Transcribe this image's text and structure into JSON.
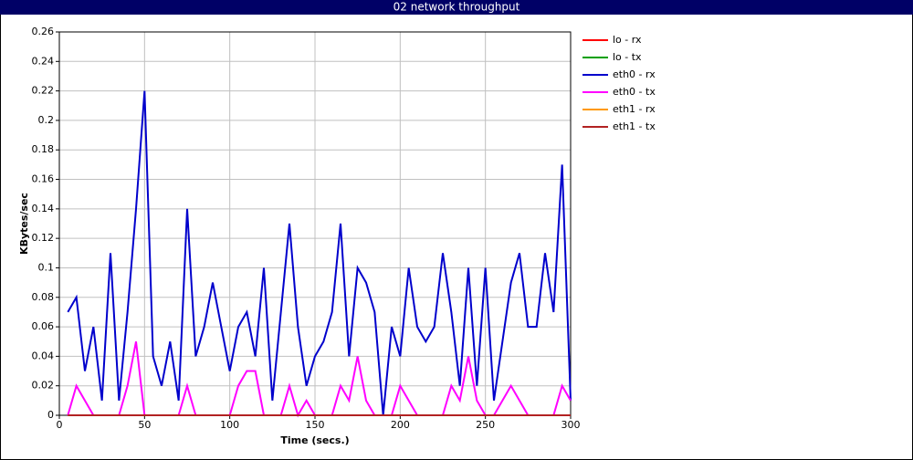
{
  "chart_data": {
    "type": "line",
    "title": "02 network throughput",
    "x_label": "Time (secs.)",
    "y_label": "KBytes/sec",
    "x": [
      5,
      10,
      15,
      20,
      25,
      30,
      35,
      40,
      45,
      50,
      55,
      60,
      65,
      70,
      75,
      80,
      85,
      90,
      95,
      100,
      105,
      110,
      115,
      120,
      125,
      130,
      135,
      140,
      145,
      150,
      155,
      160,
      165,
      170,
      175,
      180,
      185,
      190,
      195,
      200,
      205,
      210,
      215,
      220,
      225,
      230,
      235,
      240,
      245,
      250,
      255,
      260,
      265,
      270,
      275,
      280,
      285,
      290,
      295,
      300
    ],
    "series": [
      {
        "name": "lo - rx",
        "color": "#ff0000",
        "values": [
          0,
          0,
          0,
          0,
          0,
          0,
          0,
          0,
          0,
          0,
          0,
          0,
          0,
          0,
          0,
          0,
          0,
          0,
          0,
          0,
          0,
          0,
          0,
          0,
          0,
          0,
          0,
          0,
          0,
          0,
          0,
          0,
          0,
          0,
          0,
          0,
          0,
          0,
          0,
          0,
          0,
          0,
          0,
          0,
          0,
          0,
          0,
          0,
          0,
          0,
          0,
          0,
          0,
          0,
          0,
          0,
          0,
          0,
          0,
          0
        ]
      },
      {
        "name": "lo - tx",
        "color": "#00a000",
        "values": [
          0,
          0,
          0,
          0,
          0,
          0,
          0,
          0,
          0,
          0,
          0,
          0,
          0,
          0,
          0,
          0,
          0,
          0,
          0,
          0,
          0,
          0,
          0,
          0,
          0,
          0,
          0,
          0,
          0,
          0,
          0,
          0,
          0,
          0,
          0,
          0,
          0,
          0,
          0,
          0,
          0,
          0,
          0,
          0,
          0,
          0,
          0,
          0,
          0,
          0,
          0,
          0,
          0,
          0,
          0,
          0,
          0,
          0,
          0,
          0
        ]
      },
      {
        "name": "eth0 - rx",
        "color": "#0000cc",
        "values": [
          0.07,
          0.08,
          0.03,
          0.06,
          0.01,
          0.11,
          0.01,
          0.07,
          0.14,
          0.22,
          0.04,
          0.02,
          0.05,
          0.01,
          0.14,
          0.04,
          0.06,
          0.09,
          0.06,
          0.03,
          0.06,
          0.07,
          0.04,
          0.1,
          0.01,
          0.07,
          0.13,
          0.06,
          0.02,
          0.04,
          0.05,
          0.07,
          0.13,
          0.04,
          0.1,
          0.09,
          0.07,
          0,
          0.06,
          0.04,
          0.1,
          0.06,
          0.05,
          0.06,
          0.11,
          0.07,
          0.02,
          0.1,
          0.02,
          0.1,
          0.01,
          0.05,
          0.09,
          0.11,
          0.06,
          0.06,
          0.11,
          0.07,
          0.17,
          0.01
        ]
      },
      {
        "name": "eth0 - tx",
        "color": "#ff00ff",
        "values": [
          0,
          0.02,
          0.01,
          0,
          0,
          0,
          0,
          0.02,
          0.05,
          0,
          0,
          0,
          0,
          0,
          0.02,
          0,
          0,
          0,
          0,
          0,
          0.02,
          0.03,
          0.03,
          0,
          0,
          0,
          0.02,
          0,
          0.01,
          0,
          0,
          0,
          0.02,
          0.01,
          0.04,
          0.01,
          0,
          0,
          0,
          0.02,
          0.01,
          0,
          0,
          0,
          0,
          0.02,
          0.01,
          0.04,
          0.01,
          0,
          0,
          0.01,
          0.02,
          0.01,
          0,
          0,
          0,
          0,
          0.02,
          0.01
        ]
      },
      {
        "name": "eth1 - rx",
        "color": "#ff9900",
        "values": [
          0,
          0,
          0,
          0,
          0,
          0,
          0,
          0,
          0,
          0,
          0,
          0,
          0,
          0,
          0,
          0,
          0,
          0,
          0,
          0,
          0,
          0,
          0,
          0,
          0,
          0,
          0,
          0,
          0,
          0,
          0,
          0,
          0,
          0,
          0,
          0,
          0,
          0,
          0,
          0,
          0,
          0,
          0,
          0,
          0,
          0,
          0,
          0,
          0,
          0,
          0,
          0,
          0,
          0,
          0,
          0,
          0,
          0,
          0,
          0
        ]
      },
      {
        "name": "eth1 - tx",
        "color": "#b22222",
        "values": [
          0,
          0,
          0,
          0,
          0,
          0,
          0,
          0,
          0,
          0,
          0,
          0,
          0,
          0,
          0,
          0,
          0,
          0,
          0,
          0,
          0,
          0,
          0,
          0,
          0,
          0,
          0,
          0,
          0,
          0,
          0,
          0,
          0,
          0,
          0,
          0,
          0,
          0,
          0,
          0,
          0,
          0,
          0,
          0,
          0,
          0,
          0,
          0,
          0,
          0,
          0,
          0,
          0,
          0,
          0,
          0,
          0,
          0,
          0,
          0
        ]
      }
    ],
    "xlim": [
      0,
      300
    ],
    "xticks": [
      0,
      50,
      100,
      150,
      200,
      250,
      300
    ],
    "ylim": [
      0,
      0.26
    ],
    "yticks": [
      0,
      0.02,
      0.04,
      0.06,
      0.08,
      0.1,
      0.12,
      0.14,
      0.16,
      0.18,
      0.2,
      0.22,
      0.24,
      0.26
    ],
    "grid": true,
    "legend": "right"
  }
}
